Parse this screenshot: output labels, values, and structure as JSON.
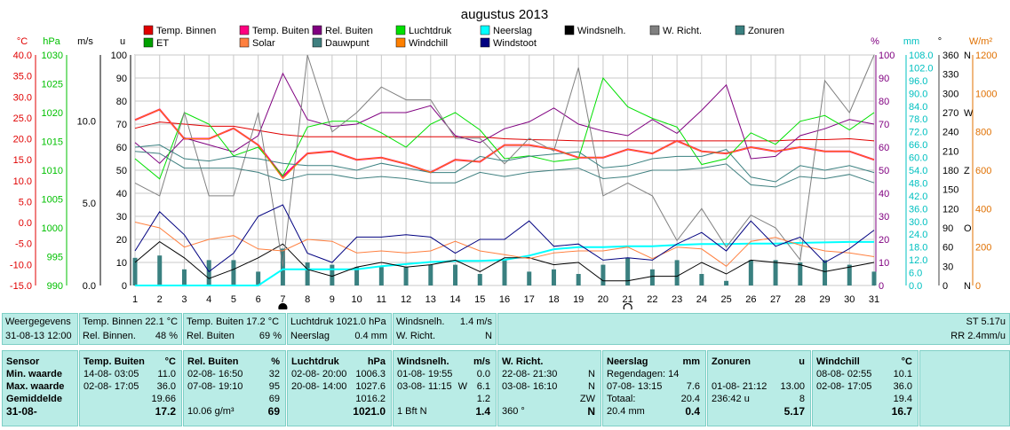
{
  "chart_data": {
    "type": "line",
    "title": "augustus 2013",
    "x": [
      1,
      2,
      3,
      4,
      5,
      6,
      7,
      8,
      9,
      10,
      11,
      12,
      13,
      14,
      15,
      16,
      17,
      18,
      19,
      20,
      21,
      22,
      23,
      24,
      25,
      26,
      27,
      28,
      29,
      30,
      31
    ],
    "axes": {
      "temp_c": {
        "label": "°C",
        "ticks": [
          "40.0",
          "35.0",
          "30.0",
          "25.0",
          "20.0",
          "15.0",
          "10.0",
          "5.0",
          "0.0",
          "-5.0",
          "-10.0",
          "-15.0"
        ],
        "color": "#e00000"
      },
      "hpa": {
        "label": "hPa",
        "ticks": [
          "1030",
          "1025",
          "1020",
          "1015",
          "1010",
          "1005",
          "1000",
          "995",
          "990"
        ],
        "color": "#00c000"
      },
      "ms": {
        "label": "m/s",
        "ticks": [
          "10.0",
          "5.0",
          "0.0"
        ],
        "color": "#000000"
      },
      "u": {
        "label": "u",
        "ticks": [
          "100",
          "90",
          "80",
          "70",
          "60",
          "50",
          "40",
          "30",
          "20",
          "10",
          "0"
        ],
        "color": "#000080"
      },
      "pct": {
        "label": "%",
        "ticks": [
          "100",
          "90",
          "80",
          "70",
          "60",
          "50",
          "40",
          "30",
          "20",
          "10",
          "0"
        ],
        "color": "#800080"
      },
      "mm": {
        "label": "mm",
        "ticks": [
          "108.0",
          "102.0",
          "96.0",
          "90.0",
          "84.0",
          "78.0",
          "72.0",
          "66.0",
          "60.0",
          "54.0",
          "48.0",
          "42.0",
          "36.0",
          "30.0",
          "24.0",
          "18.0",
          "12.0",
          "6.0",
          "0.0"
        ],
        "color": "#00c0c0"
      },
      "deg": {
        "label": "°",
        "ticks": [
          "360",
          "330",
          "300",
          "270",
          "240",
          "210",
          "180",
          "150",
          "120",
          "90",
          "60",
          "30",
          "0"
        ],
        "color": "#404040"
      },
      "wind_dir": {
        "ticks": [
          "N",
          "",
          "",
          "W",
          "",
          "",
          "Z",
          "",
          "",
          "O",
          "",
          "",
          "N"
        ],
        "color": "#404040"
      },
      "wm2": {
        "label": "W/m²",
        "ticks": [
          "1200",
          "1000",
          "800",
          "600",
          "400",
          "200",
          "0"
        ],
        "color": "#e07000"
      }
    },
    "legend": [
      {
        "name": "Temp. Binnen",
        "color": "#e00000"
      },
      {
        "name": "Temp. Buiten",
        "color": "#ff0080"
      },
      {
        "name": "Rel. Buiten",
        "color": "#800080"
      },
      {
        "name": "Luchtdruk",
        "color": "#00e000"
      },
      {
        "name": "Neerslag",
        "color": "#00ffff"
      },
      {
        "name": "Windsnelh.",
        "color": "#000000"
      },
      {
        "name": "W. Richt.",
        "color": "#808080"
      },
      {
        "name": "Zonuren",
        "color": "#3a8080"
      },
      {
        "name": "ET",
        "color": "#00a000"
      },
      {
        "name": "Solar",
        "color": "#ff8040"
      },
      {
        "name": "Dauwpunt",
        "color": "#408080"
      },
      {
        "name": "Windchill",
        "color": "#ff8000"
      },
      {
        "name": "Windstoot",
        "color": "#000080"
      }
    ],
    "series": [
      {
        "name": "Temp. Binnen",
        "axis": "temp_c",
        "color": "#e00000",
        "width": 1,
        "values": [
          22.5,
          24.0,
          23.5,
          23.0,
          23.0,
          22.0,
          21.0,
          20.5,
          20.5,
          20.5,
          20.5,
          20.5,
          20.5,
          20.5,
          20.5,
          20.0,
          19.8,
          19.7,
          19.5,
          19.5,
          19.5,
          19.5,
          19.5,
          19.5,
          19.5,
          19.5,
          19.5,
          19.8,
          19.8,
          20.0,
          19.5
        ]
      },
      {
        "name": "Temp. Buiten",
        "axis": "temp_c",
        "color": "#ff0080",
        "width": 2,
        "values": [
          24.5,
          27.0,
          20.0,
          20.0,
          22.5,
          18.5,
          11.0,
          16.5,
          17.0,
          15.0,
          15.5,
          14.0,
          12.0,
          15.0,
          14.5,
          18.5,
          18.5,
          17.5,
          15.5,
          15.5,
          17.5,
          16.5,
          19.5,
          17.0,
          16.5,
          18.0,
          17.0,
          18.0,
          17.0,
          17.0,
          15.0
        ]
      },
      {
        "name": "Rel. Buiten",
        "axis": "pct",
        "color": "#800080",
        "width": 1,
        "values": [
          62,
          53,
          64,
          61,
          58,
          65,
          92,
          72,
          69,
          70,
          75,
          75,
          78,
          65,
          62,
          68,
          71,
          77,
          70,
          67,
          65,
          72,
          66,
          76,
          87,
          55,
          56,
          65,
          68,
          72,
          70
        ]
      },
      {
        "name": "Luchtdruk",
        "axis": "hpa",
        "color": "#00e000",
        "width": 1,
        "values": [
          1012.0,
          1008.5,
          1020.0,
          1018.0,
          1012.5,
          1014.0,
          1009.0,
          1017.5,
          1018.5,
          1018.5,
          1016.5,
          1014.0,
          1018.0,
          1020.0,
          1017.0,
          1012.0,
          1012.5,
          1011.5,
          1012.0,
          1026.0,
          1021.0,
          1019.0,
          1017.5,
          1011.0,
          1012.0,
          1016.5,
          1014.5,
          1018.5,
          1019.5,
          1017.0,
          1020.0
        ]
      },
      {
        "name": "Neerslag",
        "axis": "mm",
        "color": "#00ffff",
        "width": 2,
        "values": [
          0,
          0,
          0,
          0,
          0,
          0,
          7.6,
          7.6,
          7.6,
          7.6,
          9.0,
          10.0,
          11.0,
          11.5,
          11.5,
          12.0,
          14.0,
          17.0,
          18.0,
          18.0,
          18.4,
          18.4,
          19.0,
          19.4,
          19.4,
          19.6,
          19.6,
          20.0,
          20.2,
          20.4,
          20.4
        ]
      },
      {
        "name": "Windsnelh.",
        "axis": "u",
        "color": "#000000",
        "width": 1,
        "values": [
          10,
          19,
          12,
          3,
          7,
          12,
          18,
          7,
          4,
          8,
          10,
          8,
          9,
          11,
          6,
          12,
          12,
          9,
          10,
          2,
          2,
          4,
          4,
          10,
          5,
          11,
          10,
          9,
          6,
          8,
          10
        ]
      },
      {
        "name": "W. Richt.",
        "axis": "deg",
        "color": "#808080",
        "width": 1,
        "values": [
          160,
          140,
          270,
          140,
          140,
          270,
          30,
          360,
          240,
          270,
          310,
          290,
          290,
          230,
          230,
          190,
          230,
          210,
          340,
          140,
          160,
          140,
          70,
          120,
          60,
          110,
          90,
          40,
          320,
          270,
          360
        ]
      },
      {
        "name": "Zonuren",
        "axis": "u",
        "color": "#3a8080",
        "width": 1,
        "values": [
          60,
          61,
          55,
          54,
          56,
          55,
          53,
          52,
          52,
          50,
          53,
          51,
          49,
          49,
          56,
          54,
          56,
          57,
          58,
          51,
          52,
          55,
          56,
          56,
          59,
          47,
          45,
          52,
          50,
          52,
          49
        ]
      },
      {
        "name": "Solar",
        "axis": "wm2",
        "color": "#ff8040",
        "width": 1,
        "values": [
          330,
          300,
          200,
          240,
          260,
          190,
          180,
          240,
          230,
          170,
          180,
          170,
          180,
          230,
          180,
          160,
          140,
          170,
          180,
          180,
          200,
          140,
          200,
          190,
          100,
          230,
          250,
          210,
          180,
          170,
          150
        ]
      },
      {
        "name": "Dauwpunt",
        "axis": "temp_c",
        "color": "#408080",
        "width": 1,
        "values": [
          17.0,
          16.5,
          13.0,
          13.0,
          13.0,
          12.0,
          10.0,
          11.5,
          11.5,
          10.5,
          11.0,
          10.5,
          9.5,
          9.5,
          12.0,
          11.0,
          12.0,
          12.5,
          13.0,
          10.5,
          11.0,
          12.5,
          12.5,
          13.0,
          14.0,
          9.0,
          8.5,
          11.0,
          10.5,
          11.5,
          9.5
        ]
      },
      {
        "name": "Windchill",
        "axis": "temp_c",
        "color": "#ff8000",
        "width": 1,
        "values": [
          24.5,
          27.0,
          20.0,
          20.0,
          22.5,
          18.5,
          10.5,
          16.5,
          17.0,
          15.0,
          15.5,
          14.0,
          12.0,
          15.0,
          14.5,
          18.5,
          18.5,
          17.5,
          15.5,
          15.5,
          17.5,
          16.5,
          19.5,
          17.0,
          16.5,
          18.0,
          17.0,
          18.0,
          17.0,
          17.0,
          15.0
        ]
      },
      {
        "name": "Windstoot",
        "axis": "u",
        "color": "#000080",
        "width": 1,
        "values": [
          15,
          32,
          22,
          6,
          14,
          30,
          35,
          14,
          10,
          21,
          21,
          22,
          21,
          14,
          20,
          20,
          28,
          17,
          18,
          11,
          12,
          11,
          18,
          23,
          15,
          28,
          17,
          21,
          10,
          16,
          24
        ]
      }
    ],
    "sun_bars": {
      "axis": "u",
      "values": [
        12,
        13,
        7,
        11,
        11,
        6,
        16,
        10,
        9,
        8,
        8,
        8,
        9,
        9,
        5,
        11,
        6,
        7,
        5,
        9,
        12,
        7,
        11,
        5,
        2,
        11,
        11,
        10,
        11,
        9,
        6
      ]
    },
    "moon_markers": [
      {
        "day": 7,
        "phase": "new"
      },
      {
        "day": 21,
        "phase": "full"
      }
    ]
  },
  "current": {
    "c1": {
      "l1": "Weergegevens",
      "l2": "31-08-13 12:00"
    },
    "c2": {
      "l1": "Temp. Binnen 22.1 °C",
      "l2": "Rel. Binnen.",
      "v2": "48 %"
    },
    "c3": {
      "l1": "Temp. Buiten  17.2 °C",
      "l2": "Rel. Buiten",
      "v2": "69 %"
    },
    "c4": {
      "l1": "Luchtdruk 1021.0 hPa",
      "l2": "Neerslag",
      "v2": "0.4 mm"
    },
    "c5": {
      "l1": "Windsnelh.",
      "v1": "1.4 m/s",
      "l2": "W. Richt.",
      "v2": "N"
    },
    "c6": {
      "v1": "ST 5.17u",
      "v2": "RR 2.4mm/u"
    }
  },
  "stats": {
    "labels": {
      "title": "Sensor",
      "min": "Min. waarde",
      "max": "Max. waarde",
      "avg": "Gemiddelde",
      "today": "31-08-"
    },
    "tb": {
      "title": "Temp. Buiten",
      "unit": "°C",
      "min_t": "14-08-  03:05",
      "min_v": "11.0",
      "max_t": "02-08-  17:05",
      "max_v": "36.0",
      "avg": "19.66",
      "cur": "17.2"
    },
    "rb": {
      "title": "Rel. Buiten",
      "unit": "%",
      "min_t": "02-08-  16:50",
      "min_v": "32",
      "max_t": "07-08-  19:10",
      "max_v": "95",
      "avg": "69",
      "cur_l": "10.06 g/m³",
      "cur": "69"
    },
    "ld": {
      "title": "Luchtdruk",
      "unit": "hPa",
      "min_t": "02-08-  20:00",
      "min_v": "1006.3",
      "max_t": "20-08-  14:00",
      "max_v": "1027.6",
      "avg": "1016.2",
      "cur": "1021.0"
    },
    "ws": {
      "title": "Windsnelh.",
      "unit": "m/s",
      "min_t": "01-08-  19:55",
      "min_v": "0.0",
      "max_t": "03-08-  11:15",
      "max_m": "W",
      "max_v": "6.1",
      "avg": "1.2",
      "cur_l": "1 Bft N",
      "cur": "1.4"
    },
    "wr": {
      "title": "W. Richt.",
      "min_t": "22-08-  21:30",
      "min_v": "N",
      "max_t": "03-08-  16:10",
      "max_v": "N",
      "avg": "ZW",
      "cur_l": "360 °",
      "cur": "N"
    },
    "ns": {
      "title": "Neerslag",
      "unit": "mm",
      "l1": "Regendagen: 14",
      "max_t": "07-08-  13:15",
      "max_v": "7.6",
      "avg_l": "Totaal:",
      "avg": "20.4",
      "cur_l": "20.4 mm",
      "cur": "0.4"
    },
    "zu": {
      "title": "Zonuren",
      "unit": "u",
      "max_t": "01-08-  21:12",
      "max_v": "13.00",
      "avg_l": "236:42 u",
      "avg": "8",
      "cur": "5.17"
    },
    "wc": {
      "title": "Windchill",
      "unit": "°C",
      "min_t": "08-08-  02:55",
      "min_v": "10.1",
      "max_t": "02-08-  17:05",
      "max_v": "36.0",
      "avg": "19.4",
      "cur": "16.7"
    }
  }
}
